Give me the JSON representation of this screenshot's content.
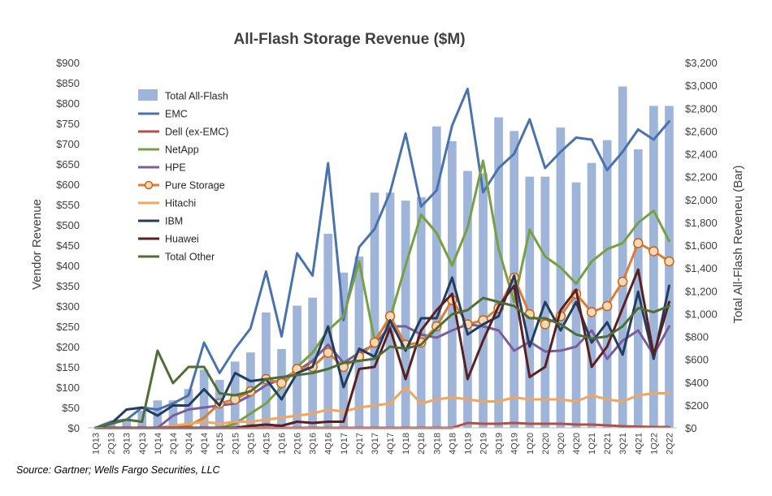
{
  "chart_data": {
    "type": "bar+line",
    "title": "All-Flash Storage Revenue ($M)",
    "ylabel_left": "Vendor Revenue",
    "ylabel_right": "Total All-Flash Reveneu (Bar)",
    "ylim_left": [
      0,
      900
    ],
    "ylim_right": [
      0,
      3200
    ],
    "left_ticks": [
      "$0",
      "$50",
      "$100",
      "$150",
      "$200",
      "$250",
      "$300",
      "$350",
      "$400",
      "$450",
      "$500",
      "$550",
      "$600",
      "$650",
      "$700",
      "$750",
      "$800",
      "$850",
      "$900"
    ],
    "right_ticks": [
      "$0",
      "$200",
      "$400",
      "$600",
      "$800",
      "$1,000",
      "$1,200",
      "$1,400",
      "$1,600",
      "$1,800",
      "$2,000",
      "$2,200",
      "$2,400",
      "$2,600",
      "$2,800",
      "$3,000",
      "$3,200"
    ],
    "categories": [
      "1Q13",
      "2Q13",
      "3Q13",
      "4Q13",
      "1Q14",
      "2Q14",
      "3Q14",
      "4Q14",
      "1Q15",
      "2Q15",
      "3Q15",
      "4Q15",
      "1Q16",
      "2Q16",
      "3Q16",
      "4Q16",
      "1Q17",
      "2Q17",
      "3Q17",
      "4Q17",
      "1Q18",
      "2Q18",
      "3Q18",
      "4Q18",
      "1Q19",
      "2Q19",
      "3Q19",
      "4Q19",
      "1Q20",
      "2Q20",
      "3Q20",
      "4Q20",
      "1Q21",
      "2Q21",
      "3Q21",
      "4Q21",
      "1Q22",
      "2Q22"
    ],
    "grid": false,
    "legend_placement": "top-left",
    "bar_series": {
      "name": "Total All-Flash",
      "color": "#9eb4d8",
      "axis": "right",
      "values": [
        5,
        50,
        80,
        150,
        240,
        240,
        340,
        510,
        420,
        580,
        660,
        1010,
        690,
        1070,
        1140,
        1700,
        1360,
        1500,
        2060,
        2060,
        1990,
        2020,
        2640,
        2510,
        2250,
        2230,
        2720,
        2600,
        2200,
        2200,
        2630,
        2150,
        2320,
        2520,
        2990,
        2440,
        2820,
        2820
      ]
    },
    "series": [
      {
        "name": "EMC",
        "color": "#4a73ad",
        "width": 3,
        "axis": "left",
        "values": [
          0,
          15,
          20,
          50,
          45,
          60,
          80,
          210,
          135,
          195,
          245,
          385,
          225,
          430,
          375,
          652,
          265,
          445,
          490,
          580,
          725,
          545,
          585,
          745,
          835,
          580,
          640,
          675,
          760,
          640,
          680,
          715,
          710,
          635,
          680,
          735,
          710,
          755
        ]
      },
      {
        "name": "Dell (ex-EMC)",
        "color": "#b0504b",
        "width": 3,
        "axis": "left",
        "values": [
          0,
          0,
          0,
          0,
          0,
          0,
          0,
          0,
          0,
          0,
          0,
          0,
          0,
          0,
          0,
          0,
          0,
          0,
          0,
          0,
          0,
          0,
          0,
          0,
          12,
          10,
          10,
          12,
          10,
          10,
          10,
          8,
          8,
          6,
          4,
          3,
          2,
          2
        ]
      },
      {
        "name": "NetApp",
        "color": "#78a041",
        "width": 3,
        "axis": "left",
        "values": [
          0,
          0,
          0,
          0,
          0,
          0,
          0,
          0,
          0,
          10,
          35,
          60,
          100,
          150,
          185,
          240,
          275,
          410,
          215,
          270,
          400,
          525,
          480,
          400,
          493,
          658,
          440,
          310,
          488,
          422,
          395,
          355,
          410,
          440,
          455,
          505,
          535,
          460
        ]
      },
      {
        "name": "HPE",
        "color": "#7a5e9b",
        "width": 3,
        "axis": "left",
        "values": [
          0,
          0,
          0,
          0,
          0,
          30,
          45,
          50,
          55,
          60,
          80,
          105,
          120,
          140,
          165,
          205,
          160,
          185,
          205,
          250,
          250,
          230,
          222,
          240,
          255,
          250,
          240,
          190,
          212,
          188,
          190,
          200,
          240,
          170,
          215,
          240,
          180,
          250
        ]
      },
      {
        "name": "Pure Storage",
        "color": "#dc7d32",
        "width": 3,
        "axis": "left",
        "marker": "circle",
        "values": [
          0,
          0,
          0,
          0,
          0,
          0,
          5,
          25,
          60,
          70,
          90,
          120,
          110,
          145,
          150,
          185,
          150,
          175,
          210,
          275,
          205,
          210,
          250,
          315,
          255,
          265,
          295,
          370,
          280,
          255,
          275,
          330,
          285,
          300,
          360,
          455,
          435,
          410
        ]
      },
      {
        "name": "Hitachi",
        "color": "#f2a55f",
        "width": 3,
        "axis": "left",
        "values": [
          0,
          0,
          0,
          0,
          0,
          5,
          10,
          15,
          10,
          15,
          15,
          20,
          25,
          30,
          35,
          45,
          40,
          50,
          55,
          60,
          100,
          60,
          70,
          75,
          70,
          65,
          65,
          75,
          70,
          70,
          70,
          65,
          80,
          70,
          65,
          80,
          85,
          85
        ]
      },
      {
        "name": "IBM",
        "color": "#233d62",
        "width": 3,
        "axis": "left",
        "values": [
          0,
          10,
          45,
          50,
          30,
          55,
          55,
          95,
          55,
          135,
          115,
          120,
          70,
          135,
          150,
          250,
          100,
          195,
          175,
          265,
          190,
          270,
          270,
          370,
          230,
          255,
          275,
          375,
          200,
          310,
          240,
          310,
          210,
          260,
          180,
          335,
          170,
          350
        ]
      },
      {
        "name": "Huawei",
        "color": "#5b1f1f",
        "width": 3,
        "axis": "left",
        "values": [
          0,
          0,
          0,
          0,
          0,
          0,
          0,
          0,
          0,
          0,
          5,
          8,
          5,
          15,
          12,
          15,
          15,
          145,
          150,
          245,
          120,
          240,
          290,
          330,
          120,
          215,
          300,
          350,
          125,
          150,
          290,
          340,
          150,
          200,
          295,
          390,
          180,
          310
        ]
      },
      {
        "name": "Total Other",
        "color": "#4e6e35",
        "width": 3,
        "axis": "left",
        "values": [
          0,
          10,
          20,
          15,
          190,
          110,
          150,
          150,
          85,
          80,
          90,
          120,
          125,
          130,
          135,
          145,
          160,
          165,
          170,
          200,
          195,
          205,
          245,
          280,
          290,
          320,
          310,
          300,
          270,
          270,
          255,
          230,
          220,
          225,
          250,
          295,
          285,
          300
        ]
      }
    ]
  },
  "source_note": "Source: Gartner; Wells Fargo Securities, LLC"
}
